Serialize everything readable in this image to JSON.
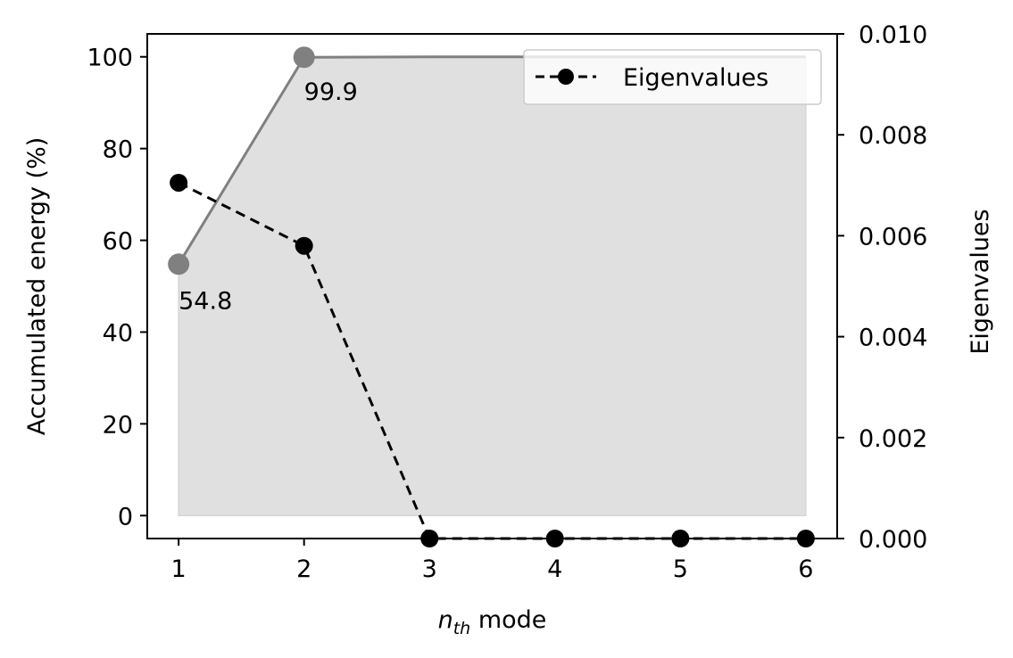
{
  "chart_data": {
    "type": "line",
    "x": [
      1,
      2,
      3,
      4,
      5,
      6
    ],
    "xlabel_main": "n",
    "xlabel_sub": "th",
    "xlabel_rest": " mode",
    "ylabel_left": "Accumulated energy (%)",
    "ylabel_right": "Eigenvalues",
    "xlim": [
      0.75,
      6.25
    ],
    "ylim_left": [
      -5,
      105
    ],
    "ylim_right": [
      0.0,
      0.01
    ],
    "x_ticks": [
      "1",
      "2",
      "3",
      "4",
      "5",
      "6"
    ],
    "y_left_ticks": [
      "0",
      "20",
      "40",
      "60",
      "80",
      "100"
    ],
    "y_right_ticks": [
      "0.000",
      "0.002",
      "0.004",
      "0.006",
      "0.008",
      "0.010"
    ],
    "series": [
      {
        "axis": "left",
        "values": [
          54.8,
          99.9,
          100.0,
          100.0,
          100.0,
          100.0
        ],
        "style": "solid",
        "color": "#808080",
        "fill": "#e0e0e0"
      },
      {
        "name": "Eigenvalues",
        "axis": "right",
        "values": [
          0.00705,
          0.0058,
          0.0,
          0.0,
          0.0,
          0.0
        ],
        "style": "dashed",
        "color": "#000000"
      }
    ],
    "annotations": [
      "54.8",
      "99.9"
    ],
    "legend_position": "top-right",
    "grid": false
  }
}
